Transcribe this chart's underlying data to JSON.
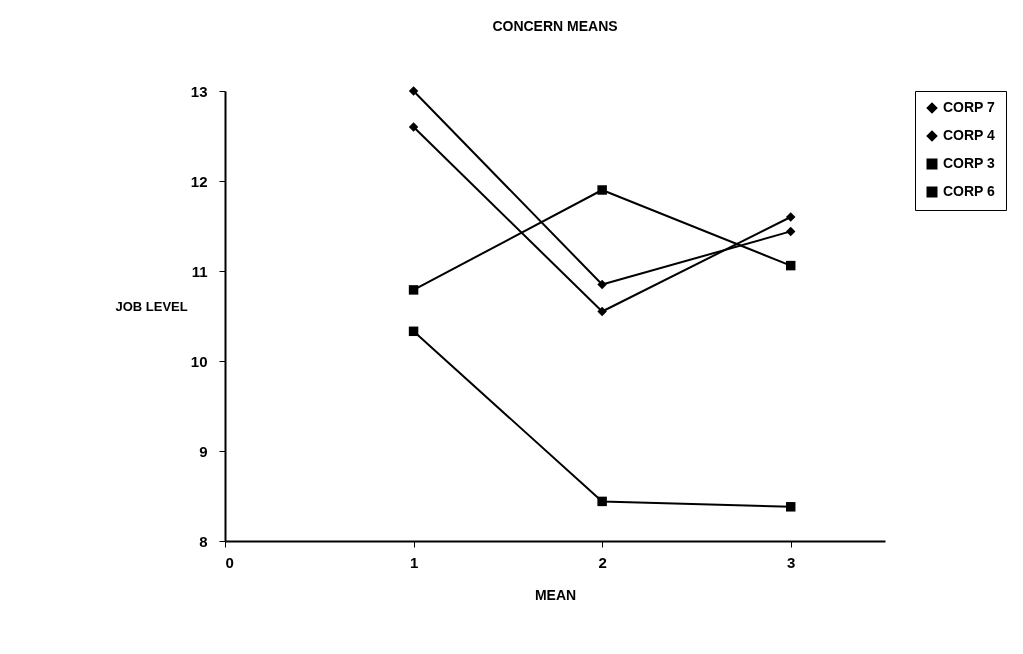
{
  "chart_data": {
    "type": "line",
    "title": "CONCERN MEANS",
    "xlabel": "MEAN",
    "ylabel": "JOB LEVEL",
    "x": [
      1,
      2,
      3
    ],
    "series": [
      {
        "name": "CORP 7",
        "color": "#000000",
        "marker": "diamond",
        "values": [
          12.6,
          10.55,
          11.6
        ]
      },
      {
        "name": "CORP 4",
        "color": "#000000",
        "marker": "diamond",
        "values": [
          13,
          10.85,
          11.44
        ]
      },
      {
        "name": "CORP 3",
        "color": "#000000",
        "marker": "square",
        "values": [
          10.79,
          11.9,
          11.06
        ]
      },
      {
        "name": "CORP 6",
        "color": "#000000",
        "marker": "square",
        "values": [
          10.33,
          8.44,
          8.38
        ]
      }
    ],
    "xlim": [
      0,
      3.5
    ],
    "xticks": [
      0,
      1,
      2,
      3
    ],
    "ylim": [
      8,
      13
    ],
    "yticks": [
      8,
      9,
      10,
      11,
      12,
      13
    ],
    "grid": false,
    "legend": "right"
  }
}
